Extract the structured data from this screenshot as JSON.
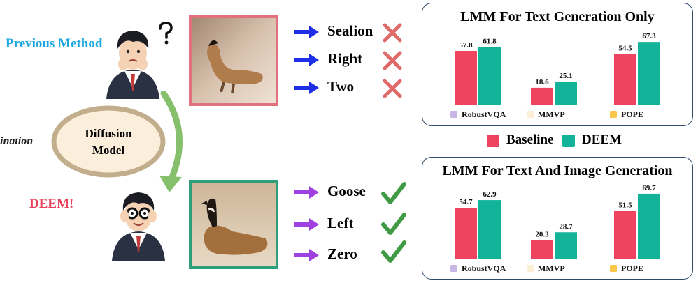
{
  "previous_method_label": "Previous Method",
  "deem_label": "DEEM!",
  "hallucination_fragment": "ination",
  "diffusion_oval_line1": "Diffusion",
  "diffusion_oval_line2": "Model",
  "answers_previous": [
    {
      "text": "Sealion",
      "result": "wrong"
    },
    {
      "text": "Right",
      "result": "wrong"
    },
    {
      "text": "Two",
      "result": "wrong"
    }
  ],
  "answers_deem": [
    {
      "text": "Goose",
      "result": "correct"
    },
    {
      "text": "Left",
      "result": "correct"
    },
    {
      "text": "Zero",
      "result": "correct"
    }
  ],
  "legend": {
    "baseline": "Baseline",
    "deem": "DEEM"
  },
  "colors": {
    "baseline": "#ef4460",
    "deem": "#13b39a",
    "previous_label": "#1aa7e0",
    "deem_label": "#e8405a",
    "frame_top": "#e0717d",
    "frame_bottom": "#2f9e7a",
    "arrow_blue": "#1f2fe8",
    "arrow_purple": "#a040e0",
    "cross": "#e06a6a",
    "check": "#3f9a43",
    "oval_fill": "#fbefdc",
    "oval_stroke": "#c2ad8c",
    "curve": "#86c06c"
  },
  "icons": {
    "question": "question-mark-icon",
    "cross": "cross-icon",
    "check": "check-icon",
    "arrow": "right-arrow-icon",
    "curve": "curved-arrow-icon"
  },
  "chart_data": [
    {
      "type": "bar",
      "title": "LMM For Text Generation Only",
      "categories": [
        "RobustVQA",
        "MMVP",
        "POPE"
      ],
      "category_colors": [
        "#c9b6e6",
        "#fbefd6",
        "#f7c64a"
      ],
      "series": [
        {
          "name": "Baseline",
          "values": [
            57.8,
            18.6,
            54.5
          ]
        },
        {
          "name": "DEEM",
          "values": [
            61.8,
            25.1,
            67.3
          ]
        }
      ],
      "legend_position": "bottom"
    },
    {
      "type": "bar",
      "title": "LMM For Text And Image Generation",
      "categories": [
        "RobustVQA",
        "MMVP",
        "POPE"
      ],
      "category_colors": [
        "#c9b6e6",
        "#fbefd6",
        "#f7c64a"
      ],
      "series": [
        {
          "name": "Baseline",
          "values": [
            54.7,
            20.3,
            51.5
          ]
        },
        {
          "name": "DEEM",
          "values": [
            62.9,
            28.7,
            69.7
          ]
        }
      ],
      "legend_position": "bottom"
    }
  ]
}
